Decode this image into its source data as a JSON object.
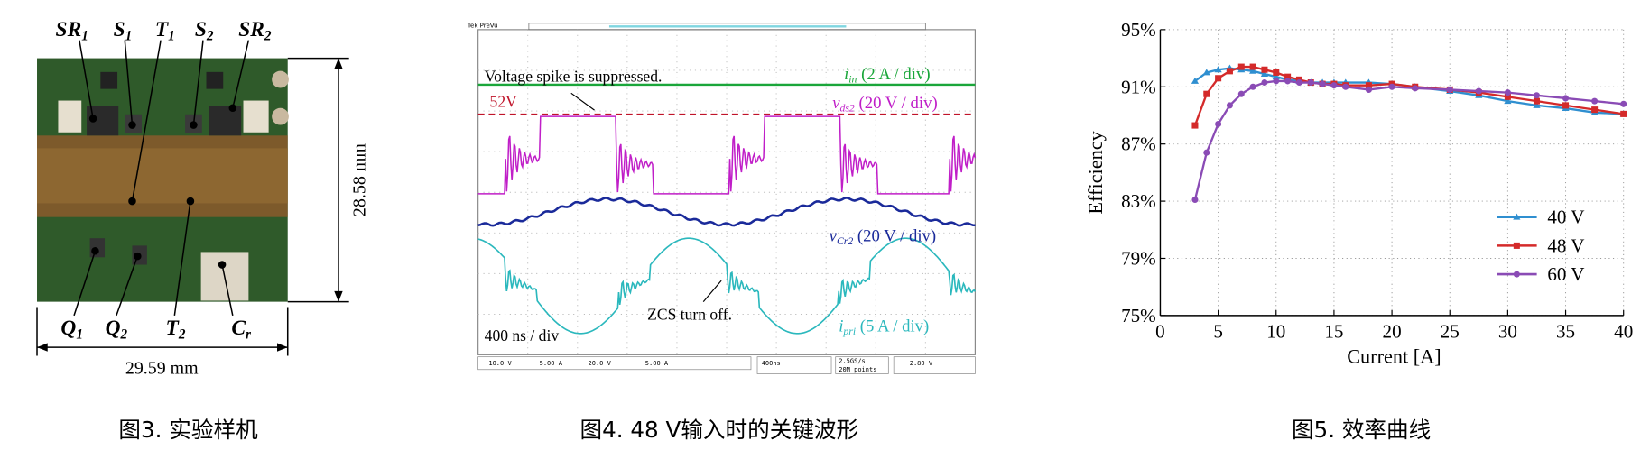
{
  "figure3": {
    "top_labels": [
      {
        "main": "SR",
        "sub": "1"
      },
      {
        "main": "S",
        "sub": "1"
      },
      {
        "main": "T",
        "sub": "1"
      },
      {
        "main": "S",
        "sub": "2"
      },
      {
        "main": "SR",
        "sub": "2"
      }
    ],
    "bottom_labels": [
      {
        "main": "Q",
        "sub": "1"
      },
      {
        "main": "Q",
        "sub": "2"
      },
      {
        "main": "T",
        "sub": "2"
      },
      {
        "main": "C",
        "sub": "r"
      }
    ],
    "height_label": "28.58 mm",
    "width_label": "29.59 mm",
    "caption": "图3. 实验样机"
  },
  "figure4": {
    "header": "Tek PreVu",
    "spike_note": "Voltage spike is suppressed.",
    "level_note": "52V",
    "zcs_note": "ZCS turn off.",
    "timebase": "400 ns / div",
    "channels": [
      {
        "main": "i",
        "sub": "in",
        "scale": " (2 A / div)"
      },
      {
        "main": "v",
        "sub": "ds2",
        "scale": " (20 V / div)"
      },
      {
        "main": "v",
        "sub": "Cr2",
        "scale": " (20 V / div)"
      },
      {
        "main": "i",
        "sub": "pri",
        "scale": " (5 A / div)"
      }
    ],
    "status": [
      "10.0 V",
      "5.00 A",
      "20.0 V",
      "5.00 A",
      "400ns",
      "2.5GS/s",
      "20M points",
      "2.80 V"
    ],
    "caption": "图4.  48 V输入时的关键波形"
  },
  "chart_data": {
    "type": "line",
    "caption": "图5. 效率曲线",
    "x_label": "Current [A]",
    "y_label": "Efficiency",
    "x": [
      3,
      4,
      5,
      6,
      7,
      8,
      9,
      10,
      11,
      12,
      13,
      14,
      15,
      16,
      18,
      20,
      22,
      25,
      27.5,
      30,
      32.5,
      35,
      37.5,
      40
    ],
    "xlim": [
      0,
      40
    ],
    "xticks": [
      0,
      5,
      10,
      15,
      20,
      25,
      30,
      35,
      40
    ],
    "ylim": [
      75,
      95
    ],
    "yticks": [
      {
        "value": 75,
        "label": "75%"
      },
      {
        "value": 79,
        "label": "79%"
      },
      {
        "value": 83,
        "label": "83%"
      },
      {
        "value": 87,
        "label": "87%"
      },
      {
        "value": 91,
        "label": "91%"
      },
      {
        "value": 95,
        "label": "95%"
      }
    ],
    "grid": true,
    "legend": "lower right",
    "series": [
      {
        "name": "40 V",
        "color": "#2f8fd0",
        "marker": "triangle",
        "values": [
          91.4,
          92.0,
          92.2,
          92.3,
          92.2,
          92.1,
          91.9,
          91.7,
          91.5,
          91.4,
          91.3,
          91.3,
          91.3,
          91.3,
          91.3,
          91.2,
          91.0,
          90.7,
          90.4,
          90.0,
          89.7,
          89.5,
          89.2,
          89.1
        ]
      },
      {
        "name": "48 V",
        "color": "#d42a2a",
        "marker": "square",
        "values": [
          88.3,
          90.5,
          91.6,
          92.1,
          92.4,
          92.4,
          92.2,
          92.0,
          91.7,
          91.5,
          91.3,
          91.2,
          91.2,
          91.1,
          91.1,
          91.2,
          91.0,
          90.8,
          90.6,
          90.3,
          90.0,
          89.7,
          89.4,
          89.1
        ]
      },
      {
        "name": "60 V",
        "color": "#8a4bb5",
        "marker": "circle",
        "values": [
          83.1,
          86.4,
          88.4,
          89.7,
          90.5,
          91.0,
          91.3,
          91.4,
          91.4,
          91.3,
          91.3,
          91.2,
          91.1,
          91.0,
          90.8,
          91.0,
          90.9,
          90.8,
          90.7,
          90.6,
          90.4,
          90.2,
          90.0,
          89.8
        ]
      }
    ]
  }
}
